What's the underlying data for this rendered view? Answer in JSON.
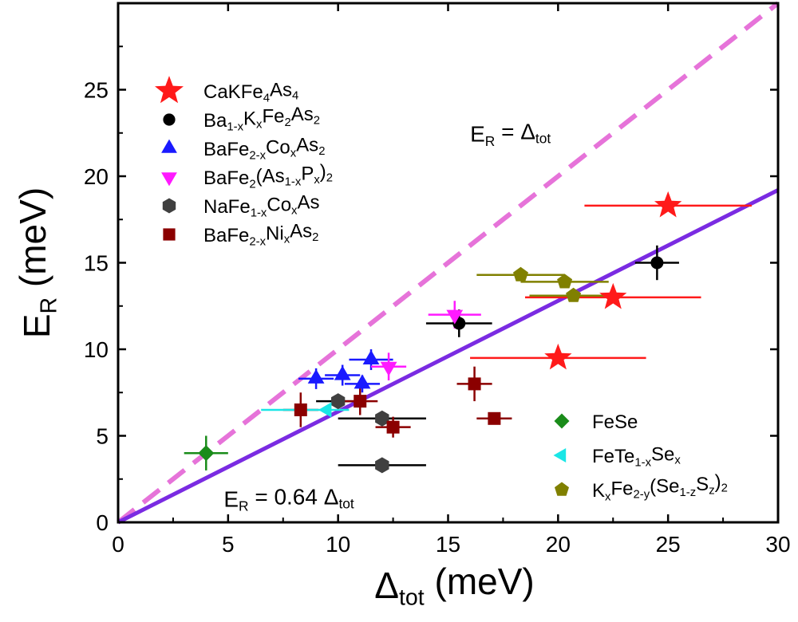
{
  "chart_data": {
    "type": "scatter",
    "xlabel": {
      "main": "Δ",
      "sub": "tot",
      "units": " (meV)"
    },
    "ylabel": {
      "main": "E",
      "sub": "R",
      "units": " (meV)"
    },
    "xlim": [
      0,
      30
    ],
    "ylim": [
      0,
      30
    ],
    "x_ticks": [
      0,
      5,
      10,
      15,
      20,
      25,
      30
    ],
    "y_ticks": [
      0,
      5,
      10,
      15,
      20,
      25
    ],
    "grid": false,
    "series": [
      {
        "key": "CaKFe4As4",
        "name": "CaKFe₄As₄",
        "label_parts": [
          [
            "CaKFe",
            ""
          ],
          [
            "4",
            "sub"
          ],
          [
            "As",
            ""
          ],
          [
            "4",
            "sub"
          ]
        ],
        "marker": "star",
        "color": "#ff1a1a",
        "error_color": "#ff1a1a",
        "points": [
          {
            "x": 25.0,
            "y": 18.3,
            "xerr": [
              3.8,
              3.8
            ],
            "yerr": [
              0,
              0
            ]
          },
          {
            "x": 22.5,
            "y": 13.0,
            "xerr": [
              4.0,
              4.0
            ],
            "yerr": [
              0,
              0
            ]
          },
          {
            "x": 20.0,
            "y": 9.5,
            "xerr": [
              4.0,
              4.0
            ],
            "yerr": [
              0,
              0
            ]
          }
        ]
      },
      {
        "key": "BaKFe2As2",
        "name": "Ba1-xKxFe2As2",
        "label_parts": [
          [
            "Ba",
            ""
          ],
          [
            "1-x",
            "sub"
          ],
          [
            "K",
            ""
          ],
          [
            "x",
            "sub"
          ],
          [
            "Fe",
            ""
          ],
          [
            "2",
            "sub"
          ],
          [
            "As",
            ""
          ],
          [
            "2",
            "sub"
          ]
        ],
        "marker": "circle",
        "color": "#000000",
        "error_color": "#000000",
        "points": [
          {
            "x": 24.5,
            "y": 15.0,
            "xerr": [
              1.0,
              1.0
            ],
            "yerr": [
              1.0,
              1.0
            ]
          },
          {
            "x": 15.5,
            "y": 11.5,
            "xerr": [
              1.5,
              1.5
            ],
            "yerr": [
              0.8,
              0.8
            ]
          }
        ]
      },
      {
        "key": "BaFeCoAs2",
        "name": "BaFe2-xCoxAs2",
        "label_parts": [
          [
            "BaFe",
            ""
          ],
          [
            "2-x",
            "sub"
          ],
          [
            "Co",
            ""
          ],
          [
            "x",
            "sub"
          ],
          [
            "As",
            ""
          ],
          [
            "2",
            "sub"
          ]
        ],
        "marker": "triangle-up",
        "color": "#1a1aff",
        "error_color": "#1a1aff",
        "points": [
          {
            "x": 9.0,
            "y": 8.3,
            "xerr": [
              0.8,
              0.8
            ],
            "yerr": [
              0.6,
              0.6
            ]
          },
          {
            "x": 10.2,
            "y": 8.5,
            "xerr": [
              0.8,
              0.8
            ],
            "yerr": [
              0.6,
              0.6
            ]
          },
          {
            "x": 11.1,
            "y": 8.0,
            "xerr": [
              0.8,
              0.8
            ],
            "yerr": [
              0.5,
              0.5
            ]
          },
          {
            "x": 11.5,
            "y": 9.4,
            "xerr": [
              1.0,
              1.0
            ],
            "yerr": [
              0.6,
              0.6
            ]
          }
        ]
      },
      {
        "key": "BaFe2AsP2",
        "name": "BaFe2(As1-xPx)2",
        "label_parts": [
          [
            "BaFe",
            ""
          ],
          [
            "2",
            "sub"
          ],
          [
            "(As",
            ""
          ],
          [
            "1-x",
            "sub"
          ],
          [
            "P",
            ""
          ],
          [
            "x",
            "sub"
          ],
          [
            ")",
            ""
          ],
          [
            "2",
            "sub"
          ]
        ],
        "marker": "triangle-down",
        "color": "#ff1aff",
        "error_color": "#ff1aff",
        "points": [
          {
            "x": 12.3,
            "y": 9.0,
            "xerr": [
              0.8,
              0.8
            ],
            "yerr": [
              0.8,
              0.8
            ]
          },
          {
            "x": 15.3,
            "y": 12.0,
            "xerr": [
              1.2,
              1.2
            ],
            "yerr": [
              0.8,
              0.8
            ]
          }
        ]
      },
      {
        "key": "NaFeCoAs",
        "name": "NaFe1-xCoxAs",
        "label_parts": [
          [
            "NaFe",
            ""
          ],
          [
            "1-x",
            "sub"
          ],
          [
            "Co",
            ""
          ],
          [
            "x",
            "sub"
          ],
          [
            "As",
            ""
          ]
        ],
        "marker": "hexagon",
        "color": "#404040",
        "error_color": "#000000",
        "points": [
          {
            "x": 10.0,
            "y": 7.0,
            "xerr": [
              1.0,
              1.0
            ],
            "yerr": [
              0,
              0
            ]
          },
          {
            "x": 12.0,
            "y": 6.0,
            "xerr": [
              2.0,
              2.0
            ],
            "yerr": [
              0,
              0
            ]
          },
          {
            "x": 12.0,
            "y": 3.3,
            "xerr": [
              2.0,
              2.0
            ],
            "yerr": [
              0,
              0
            ]
          }
        ]
      },
      {
        "key": "BaFeNiAs2",
        "name": "BaFe2-xNixAs2",
        "label_parts": [
          [
            "BaFe",
            ""
          ],
          [
            "2-x",
            "sub"
          ],
          [
            "Ni",
            ""
          ],
          [
            "x",
            "sub"
          ],
          [
            "As",
            ""
          ],
          [
            "2",
            "sub"
          ]
        ],
        "marker": "square",
        "color": "#8b0000",
        "error_color": "#8b0000",
        "points": [
          {
            "x": 8.3,
            "y": 6.5,
            "xerr": [
              0.8,
              0.8
            ],
            "yerr": [
              1.0,
              1.0
            ]
          },
          {
            "x": 11.0,
            "y": 7.0,
            "xerr": [
              0.8,
              0.8
            ],
            "yerr": [
              0.8,
              0.8
            ]
          },
          {
            "x": 12.5,
            "y": 5.5,
            "xerr": [
              0.8,
              0.8
            ],
            "yerr": [
              0.6,
              0.6
            ]
          },
          {
            "x": 16.2,
            "y": 8.0,
            "xerr": [
              0.8,
              0.8
            ],
            "yerr": [
              1.0,
              1.0
            ]
          },
          {
            "x": 17.1,
            "y": 6.0,
            "xerr": [
              0.8,
              0.8
            ],
            "yerr": [
              0,
              0
            ]
          }
        ]
      },
      {
        "key": "FeSe",
        "name": "FeSe",
        "label_parts": [
          [
            "FeSe",
            ""
          ]
        ],
        "marker": "diamond",
        "color": "#1a8c1a",
        "error_color": "#1a8c1a",
        "points": [
          {
            "x": 4.0,
            "y": 4.0,
            "xerr": [
              1.0,
              1.0
            ],
            "yerr": [
              1.0,
              1.0
            ]
          }
        ]
      },
      {
        "key": "FeTeSe",
        "name": "FeTe1-xSex",
        "label_parts": [
          [
            "FeTe",
            ""
          ],
          [
            "1-x",
            "sub"
          ],
          [
            "Se",
            ""
          ],
          [
            "x",
            "sub"
          ]
        ],
        "marker": "triangle-left",
        "color": "#1ae6e6",
        "error_color": "#1ae6e6",
        "points": [
          {
            "x": 9.5,
            "y": 6.5,
            "xerr": [
              3.0,
              1.0
            ],
            "yerr": [
              0,
              0
            ]
          }
        ]
      },
      {
        "key": "KFeSeS",
        "name": "KxFe2-y(Se1-zSz)2",
        "label_parts": [
          [
            "K",
            ""
          ],
          [
            "x",
            "sub"
          ],
          [
            "Fe",
            ""
          ],
          [
            "2-y",
            "sub"
          ],
          [
            "(Se",
            ""
          ],
          [
            "1-z",
            "sub"
          ],
          [
            "S",
            ""
          ],
          [
            "z",
            "sub"
          ],
          [
            ")",
            ""
          ],
          [
            "2",
            "sub"
          ]
        ],
        "marker": "pentagon",
        "color": "#808000",
        "error_color": "#808000",
        "points": [
          {
            "x": 18.3,
            "y": 14.3,
            "xerr": [
              2.0,
              2.0
            ],
            "yerr": [
              0,
              0
            ]
          },
          {
            "x": 20.3,
            "y": 13.9,
            "xerr": [
              2.0,
              2.0
            ],
            "yerr": [
              0,
              0
            ]
          },
          {
            "x": 20.7,
            "y": 13.1,
            "xerr": [
              2.0,
              2.0
            ],
            "yerr": [
              0,
              0
            ]
          }
        ]
      }
    ],
    "lines": [
      {
        "key": "er_delta",
        "slope": 1.0,
        "color": "#e673d9",
        "style": "dashed",
        "label_parts": [
          [
            "E",
            ""
          ],
          [
            "R",
            "sub"
          ],
          [
            " = Δ",
            ""
          ],
          [
            "tot",
            "sub"
          ]
        ],
        "label_color": "#e673d9",
        "label_at": [
          16.0,
          22.0
        ]
      },
      {
        "key": "er_064",
        "slope": 0.64,
        "color": "#7a2be2",
        "style": "solid",
        "label_parts": [
          [
            "E",
            ""
          ],
          [
            "R",
            "sub"
          ],
          [
            " = 0.64 Δ",
            ""
          ],
          [
            "tot",
            "sub"
          ]
        ],
        "label_color": "#7a2be2",
        "label_at": [
          4.8,
          0.9
        ]
      }
    ],
    "legends": [
      {
        "placement": "top-left",
        "series": [
          "CaKFe4As4",
          "BaKFe2As2",
          "BaFeCoAs2",
          "BaFe2AsP2",
          "NaFeCoAs",
          "BaFeNiAs2"
        ]
      },
      {
        "placement": "bottom-right",
        "series": [
          "FeSe",
          "FeTeSe",
          "KFeSeS"
        ]
      }
    ]
  }
}
